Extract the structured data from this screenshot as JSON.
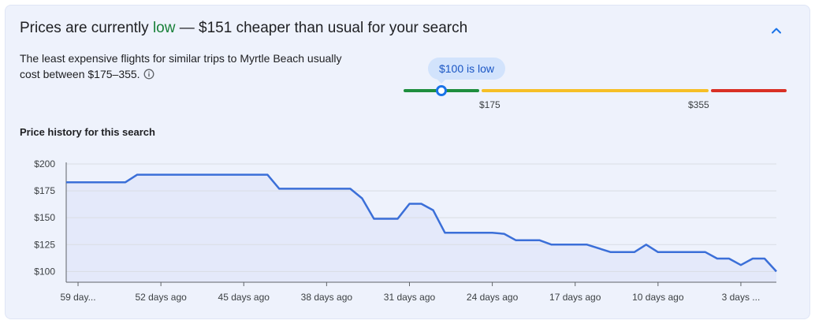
{
  "insight": {
    "headline_prefix": "Prices are currently ",
    "headline_level": "low",
    "headline_suffix": " — $151 cheaper than usual for your search",
    "description": "The least expensive flights for similar trips to Myrtle Beach usually cost between $175–355.",
    "collapse_icon": "chevron-up-icon",
    "info_icon": "info-icon"
  },
  "price_range": {
    "current_label": "$100 is low",
    "low_threshold_label": "$175",
    "high_threshold_label": "$355",
    "current_price": 100,
    "low_threshold": 175,
    "high_threshold": 355,
    "colors": {
      "low": "#1e8e3e",
      "typical": "#f6bf26",
      "high": "#d93025",
      "marker": "#1a73e8"
    }
  },
  "history": {
    "title": "Price history for this search"
  },
  "chart_data": {
    "type": "area",
    "title": "",
    "xlabel": "",
    "ylabel": "",
    "ylim": [
      90,
      200
    ],
    "y_ticks": [
      100,
      125,
      150,
      175,
      200
    ],
    "y_tick_labels": [
      "$100",
      "$125",
      "$150",
      "$175",
      "$200"
    ],
    "x_ticks": [
      59,
      52,
      45,
      38,
      31,
      24,
      17,
      10,
      3
    ],
    "x_tick_labels": [
      "59 day...",
      "52 days ago",
      "45 days ago",
      "38 days ago",
      "31 days ago",
      "24 days ago",
      "17 days ago",
      "10 days ago",
      "3 days ..."
    ],
    "x_range_days_ago": [
      60,
      0
    ],
    "grid": true,
    "line_color": "#3b6fd8",
    "fill_color": "#e2e8fa",
    "series": [
      {
        "x_days_ago": [
          60,
          55,
          54,
          48,
          47,
          43,
          42,
          37,
          36,
          35,
          34,
          32,
          31,
          30,
          29,
          28,
          27,
          25,
          24,
          23,
          22,
          21,
          20,
          19,
          18,
          17,
          16,
          14,
          13,
          12,
          11,
          10,
          9,
          7,
          6,
          5,
          4,
          3,
          2,
          1,
          0
        ],
        "values": [
          183,
          183,
          190,
          190,
          190,
          190,
          177,
          177,
          177,
          168,
          149,
          149,
          163,
          163,
          157,
          136,
          136,
          136,
          136,
          135,
          129,
          129,
          129,
          125,
          125,
          125,
          125,
          118,
          118,
          118,
          125,
          118,
          118,
          118,
          118,
          112,
          112,
          106,
          112,
          112,
          100
        ]
      }
    ]
  }
}
